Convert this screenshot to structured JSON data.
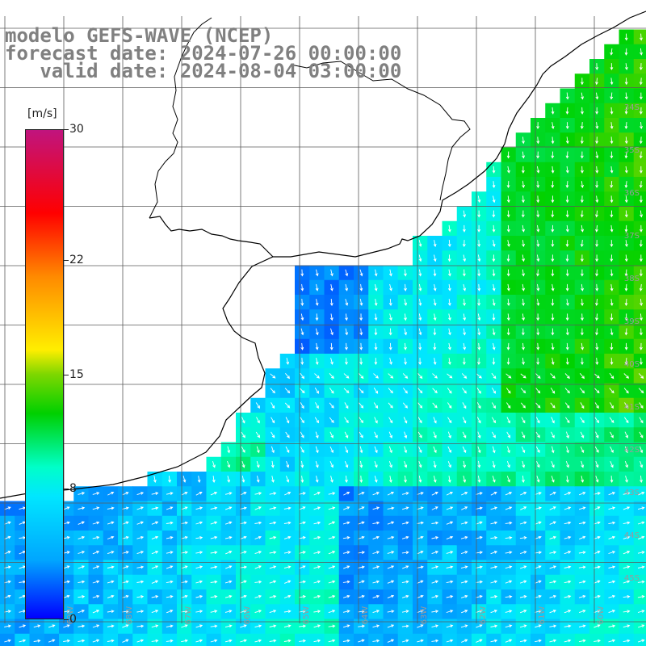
{
  "title": {
    "line1": "modelo GEFS-WAVE (NCEP)",
    "line2": "forecast date: 2024-07-26 00:00:00",
    "line3": "   valid date: 2024-08-04 03:00:00"
  },
  "colorbar": {
    "unit": "[m/s]",
    "min": 0,
    "max": 30,
    "ticks": [
      {
        "value": 30,
        "label": "30"
      },
      {
        "value": 22,
        "label": "22"
      },
      {
        "value": 15,
        "label": "15"
      },
      {
        "value": 8,
        "label": "8"
      },
      {
        "value": 0,
        "label": "0"
      }
    ],
    "colors": [
      "#0000ff",
      "#00a6ff",
      "#00e6ff",
      "#00ffc8",
      "#00d000",
      "#7ed700",
      "#ffee00",
      "#ff8a00",
      "#ff0000",
      "#c0147e"
    ]
  },
  "latitude_labels": [
    "32S",
    "33S",
    "34S",
    "35S",
    "36S",
    "37S",
    "38S",
    "39S",
    "40S",
    "41S",
    "42S",
    "43S",
    "44S",
    "45S"
  ],
  "longitude_labels": [
    "69W",
    "68W",
    "67W",
    "66W",
    "65W",
    "64W",
    "63W",
    "62W",
    "61W",
    "60W"
  ],
  "colors": {
    "land": "#ffffff",
    "grid": "#5a5a5a",
    "coast": "#000000",
    "arrows": "#ffffff",
    "title_text": "#808080"
  }
}
